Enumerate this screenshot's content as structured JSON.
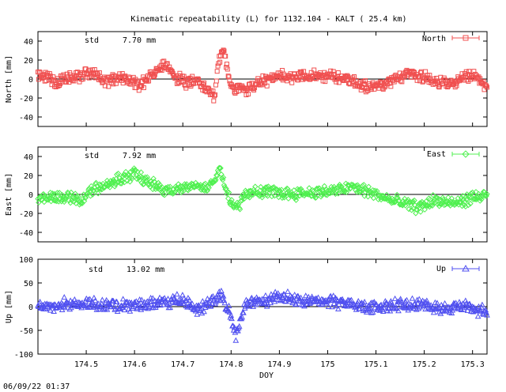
{
  "title": "Kinematic repeatability (L) for 1132.104 - KALT  ( 25.4 km)",
  "footer_timestamp": "06/09/22 01:37",
  "chart_data": [
    {
      "type": "scatter",
      "series": [
        {
          "name": "North",
          "color": "#f05050",
          "marker": "square"
        }
      ],
      "ylabel": "North [mm]",
      "std_label": "std",
      "std_value": "7.70 mm",
      "ylim": [
        -50,
        50
      ],
      "yticks": [
        -40,
        -20,
        0,
        20,
        40
      ],
      "xlim": [
        174.4,
        175.33
      ],
      "legend_position": "top-right",
      "grid": false,
      "zero_line": true,
      "profile": [
        [
          174.4,
          5
        ],
        [
          174.44,
          -3
        ],
        [
          174.48,
          2
        ],
        [
          174.51,
          8
        ],
        [
          174.54,
          -4
        ],
        [
          174.57,
          3
        ],
        [
          174.61,
          -6
        ],
        [
          174.64,
          6
        ],
        [
          174.66,
          14
        ],
        [
          174.69,
          1
        ],
        [
          174.71,
          -5
        ],
        [
          174.73,
          2
        ],
        [
          174.75,
          -12
        ],
        [
          174.765,
          -18
        ],
        [
          174.775,
          22
        ],
        [
          174.785,
          32
        ],
        [
          174.79,
          12
        ],
        [
          174.8,
          -8
        ],
        [
          174.83,
          -12
        ],
        [
          174.86,
          -3
        ],
        [
          174.9,
          2
        ],
        [
          174.95,
          4
        ],
        [
          175.0,
          3
        ],
        [
          175.04,
          1
        ],
        [
          175.07,
          -6
        ],
        [
          175.1,
          -8
        ],
        [
          175.13,
          -4
        ],
        [
          175.17,
          6
        ],
        [
          175.2,
          3
        ],
        [
          175.23,
          -4
        ],
        [
          175.25,
          -6
        ],
        [
          175.27,
          -2
        ],
        [
          175.3,
          4
        ],
        [
          175.33,
          -8
        ]
      ]
    },
    {
      "type": "scatter",
      "series": [
        {
          "name": "East",
          "color": "#50f050",
          "marker": "diamond"
        }
      ],
      "ylabel": "East [mm]",
      "std_label": "std",
      "std_value": "7.92 mm",
      "ylim": [
        -50,
        50
      ],
      "yticks": [
        -40,
        -20,
        0,
        20,
        40
      ],
      "xlim": [
        174.4,
        175.33
      ],
      "legend_position": "top-right",
      "grid": false,
      "zero_line": true,
      "profile": [
        [
          174.4,
          -4
        ],
        [
          174.44,
          -2
        ],
        [
          174.47,
          -4
        ],
        [
          174.49,
          -6
        ],
        [
          174.51,
          4
        ],
        [
          174.54,
          10
        ],
        [
          174.57,
          16
        ],
        [
          174.6,
          22
        ],
        [
          174.63,
          12
        ],
        [
          174.66,
          6
        ],
        [
          174.69,
          4
        ],
        [
          174.72,
          10
        ],
        [
          174.75,
          8
        ],
        [
          174.765,
          14
        ],
        [
          174.775,
          28
        ],
        [
          174.79,
          8
        ],
        [
          174.8,
          -10
        ],
        [
          174.81,
          -16
        ],
        [
          174.83,
          2
        ],
        [
          174.87,
          3
        ],
        [
          174.92,
          1
        ],
        [
          174.97,
          2
        ],
        [
          175.02,
          4
        ],
        [
          175.05,
          8
        ],
        [
          175.09,
          2
        ],
        [
          175.13,
          -6
        ],
        [
          175.16,
          -10
        ],
        [
          175.19,
          -14
        ],
        [
          175.22,
          -6
        ],
        [
          175.26,
          -10
        ],
        [
          175.3,
          -4
        ],
        [
          175.33,
          0
        ]
      ]
    },
    {
      "type": "scatter",
      "series": [
        {
          "name": "Up",
          "color": "#5050f0",
          "marker": "triangle"
        }
      ],
      "ylabel": "Up [mm]",
      "std_label": "std",
      "std_value": "13.02 mm",
      "ylim": [
        -100,
        100
      ],
      "yticks": [
        -100,
        -50,
        0,
        50,
        100
      ],
      "xlim": [
        174.4,
        175.33
      ],
      "xticks": [
        174.5,
        174.6,
        174.7,
        174.8,
        174.9,
        175,
        175.1,
        175.2,
        175.3
      ],
      "xlabel": "DOY",
      "legend_position": "top-right",
      "grid": false,
      "zero_line": true,
      "profile": [
        [
          174.4,
          0
        ],
        [
          174.45,
          5
        ],
        [
          174.5,
          8
        ],
        [
          174.55,
          3
        ],
        [
          174.6,
          4
        ],
        [
          174.65,
          6
        ],
        [
          174.7,
          14
        ],
        [
          174.73,
          -8
        ],
        [
          174.76,
          10
        ],
        [
          174.78,
          28
        ],
        [
          174.8,
          -18
        ],
        [
          174.81,
          -58
        ],
        [
          174.83,
          5
        ],
        [
          174.86,
          10
        ],
        [
          174.9,
          20
        ],
        [
          174.95,
          14
        ],
        [
          175.0,
          12
        ],
        [
          175.05,
          4
        ],
        [
          175.1,
          -2
        ],
        [
          175.15,
          6
        ],
        [
          175.2,
          4
        ],
        [
          175.25,
          -6
        ],
        [
          175.28,
          4
        ],
        [
          175.3,
          -2
        ],
        [
          175.33,
          -14
        ]
      ]
    }
  ]
}
